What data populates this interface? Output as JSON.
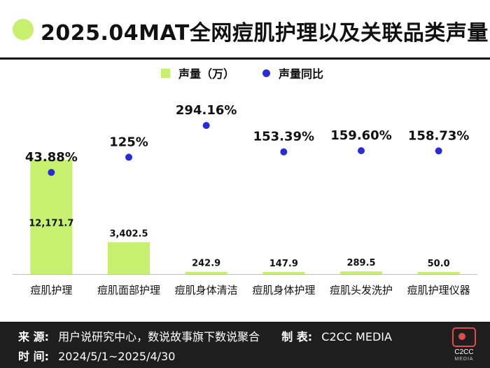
{
  "title": "2025.04MAT全网痘肌护理以及关联品类声量",
  "legend": {
    "volume": "声量（万）",
    "yoy": "声量同比"
  },
  "colors": {
    "bar": "#c6f06d",
    "dot": "#2b2bd9",
    "accent": "#c6f06d",
    "footer_bg": "#1e1e1e",
    "logo": "#e24b4b"
  },
  "chart_data": {
    "type": "bar",
    "categories": [
      "痘肌护理",
      "痘肌面部护理",
      "痘肌身体清洁",
      "痘肌身体护理",
      "痘肌头发洗护",
      "痘肌护理仪器"
    ],
    "series": [
      {
        "name": "声量（万）",
        "type": "bar",
        "values": [
          12171.7,
          3402.5,
          242.9,
          147.9,
          289.5,
          50.0
        ],
        "labels": [
          "12,171.7",
          "3,402.5",
          "242.9",
          "147.9",
          "289.5",
          "50.0"
        ]
      },
      {
        "name": "声量同比",
        "type": "scatter",
        "values": [
          43.88,
          125,
          294.16,
          153.39,
          159.6,
          158.73
        ],
        "labels": [
          "43.88%",
          "125%",
          "294.16%",
          "153.39%",
          "159.60%",
          "158.73%"
        ]
      }
    ]
  },
  "footer": {
    "source_key": "来  源:",
    "source_value": "用户说研究中心，数说故事旗下数说聚合",
    "maker_key": "制  表:",
    "maker_value": "C2CC  MEDIA",
    "time_key": "时  间:",
    "time_value": "2024/5/1~2025/4/30",
    "logo_text": "C2CC",
    "logo_sub": "MEDIA"
  }
}
